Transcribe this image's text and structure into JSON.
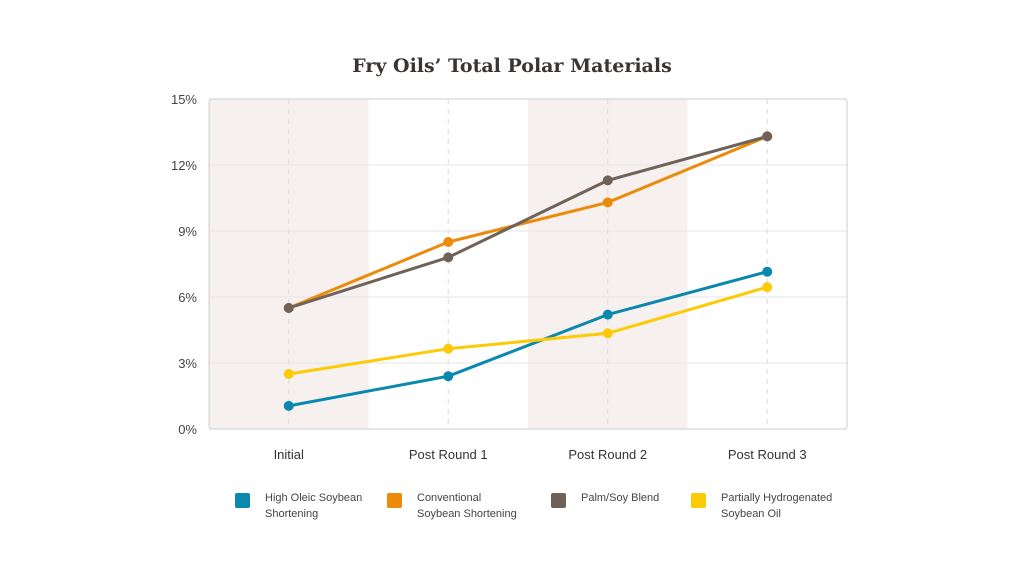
{
  "chart_data": {
    "type": "line",
    "title": "Fry Oils’ Total Polar Materials",
    "xlabel": "",
    "ylabel": "",
    "categories": [
      "Initial",
      "Post Round 1",
      "Post Round 2",
      "Post Round 3"
    ],
    "ylim": [
      0,
      15
    ],
    "yticks": [
      0,
      3,
      6,
      9,
      12,
      15
    ],
    "ytick_labels": [
      "0%",
      "3%",
      "6%",
      "9%",
      "12%",
      "15%"
    ],
    "grid": true,
    "legend_position": "bottom",
    "series": [
      {
        "name": "High Oleic Soybean Shortening",
        "color": "#0a88ad",
        "values": [
          1.05,
          2.4,
          5.2,
          7.15
        ]
      },
      {
        "name": "Conventional Soybean Shortening",
        "color": "#ec8a0a",
        "values": [
          5.5,
          8.5,
          10.3,
          13.3
        ]
      },
      {
        "name": "Palm/Soy Blend",
        "color": "#6e6259",
        "values": [
          5.5,
          7.8,
          11.3,
          13.3
        ]
      },
      {
        "name": "Partially Hydrogenated Soybean Oil",
        "color": "#fccb06",
        "values": [
          2.5,
          3.65,
          4.35,
          6.45
        ]
      }
    ]
  }
}
